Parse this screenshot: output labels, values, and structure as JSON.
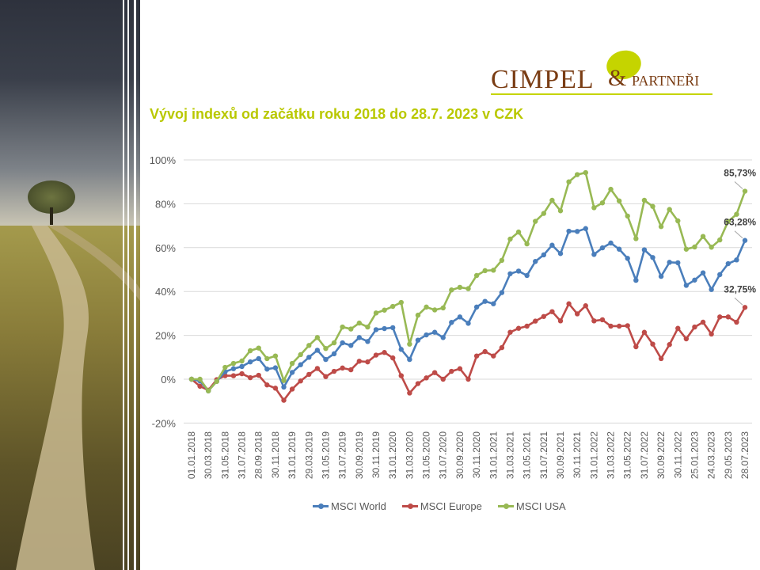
{
  "logo": {
    "text_main": "CIMPEL",
    "text_amp": "&",
    "text_sub": "PARTNEŘI"
  },
  "title": "Vývoj indexů od začátku roku 2018 do 28.7. 2023 v CZK",
  "chart_data": {
    "type": "line",
    "title": "",
    "xlabel": "",
    "ylabel": "",
    "ylim": [
      -20,
      100
    ],
    "yticks": [
      "-20%",
      "0%",
      "20%",
      "40%",
      "60%",
      "80%",
      "100%"
    ],
    "ytick_values": [
      -20,
      0,
      20,
      40,
      60,
      80,
      100
    ],
    "grid": true,
    "legend": "bottom",
    "x_tick_labels": [
      "01.01.2018",
      "30.03.2018",
      "31.05.2018",
      "31.07.2018",
      "28.09.2018",
      "30.11.2018",
      "31.01.2019",
      "29.03.2019",
      "31.05.2019",
      "31.07.2019",
      "30.09.2019",
      "30.11.2019",
      "31.01.2020",
      "31.03.2020",
      "31.05.2020",
      "31.07.2020",
      "30.09.2020",
      "30.11.2020",
      "31.01.2021",
      "31.03.2021",
      "31.05.2021",
      "31.07.2021",
      "30.09.2021",
      "30.11.2021",
      "31.01.2022",
      "31.03.2022",
      "31.05.2022",
      "31.07.2022",
      "30.09.2022",
      "30.11.2022",
      "25.01.2023",
      "24.03.2023",
      "29.05.2023",
      "28.07.2023"
    ],
    "series": [
      {
        "name": "MSCI World",
        "color": "#4a7ebb",
        "last_label": "63,28%",
        "values": [
          0,
          -0.8,
          -5.3,
          -1,
          3.4,
          4.8,
          5.8,
          7.9,
          9.4,
          4.6,
          5.2,
          -3.6,
          3.1,
          6.6,
          10,
          13.2,
          9,
          11.6,
          16.6,
          15.4,
          19,
          17.2,
          22.6,
          23.1,
          23.5,
          13.6,
          9,
          17.8,
          20.2,
          21.4,
          19,
          25.9,
          28.4,
          25.5,
          32.9,
          35.5,
          34.4,
          39.5,
          48.1,
          49.3,
          47.3,
          53.7,
          56.7,
          61.1,
          57.3,
          67.5,
          67.4,
          68.7,
          56.9,
          59.9,
          62.1,
          59.3,
          55.1,
          45.1,
          59,
          55.5,
          46.9,
          53.3,
          53.1,
          42.8,
          45.2,
          48.5,
          40.9,
          47.7,
          52.7,
          54.4,
          63.28
        ]
      },
      {
        "name": "MSCI Europe",
        "color": "#be4b48",
        "last_label": "32,75%",
        "values": [
          0,
          -3.2,
          -5,
          -0.2,
          1.6,
          1.6,
          2.5,
          0.7,
          1.8,
          -2.6,
          -4.1,
          -9.6,
          -4.5,
          -0.8,
          2.2,
          4.9,
          1.2,
          3.6,
          5.1,
          4.3,
          8.2,
          7.9,
          11,
          12.2,
          9.7,
          1.6,
          -6.3,
          -2,
          0.6,
          3,
          0,
          3.6,
          4.8,
          0,
          10.6,
          12.6,
          10.6,
          14.4,
          21.4,
          23.2,
          24.2,
          26.5,
          28.6,
          30.8,
          26.6,
          34.4,
          29.8,
          33.5,
          26.6,
          27.1,
          24.2,
          24.2,
          24.4,
          14.8,
          21.4,
          16,
          9.4,
          15.8,
          23.2,
          18.4,
          23.8,
          26,
          20.6,
          28.4,
          28.4,
          26,
          32.75
        ]
      },
      {
        "name": "MSCI USA",
        "color": "#98b954",
        "last_label": "85,73%",
        "values": [
          0,
          0,
          -5.3,
          -1,
          5.4,
          7.2,
          8.3,
          13,
          14.2,
          9.4,
          10.6,
          -0.6,
          7.2,
          11.2,
          15.4,
          19,
          14,
          16.6,
          23.8,
          22.9,
          25.6,
          23.8,
          30.2,
          31.5,
          33.2,
          35,
          16,
          29.2,
          32.9,
          31.6,
          32.5,
          40.7,
          41.9,
          41.3,
          47.3,
          49.5,
          49.7,
          54.2,
          63.9,
          67.1,
          61.7,
          72,
          75.6,
          81.6,
          76.8,
          90,
          93.3,
          94.2,
          78.2,
          80.4,
          86.6,
          81.3,
          74.4,
          64.1,
          81.6,
          78.8,
          69.6,
          77.4,
          72.2,
          59.3,
          60.3,
          65.1,
          60.2,
          63.5,
          72,
          75.2,
          85.73
        ]
      }
    ]
  }
}
